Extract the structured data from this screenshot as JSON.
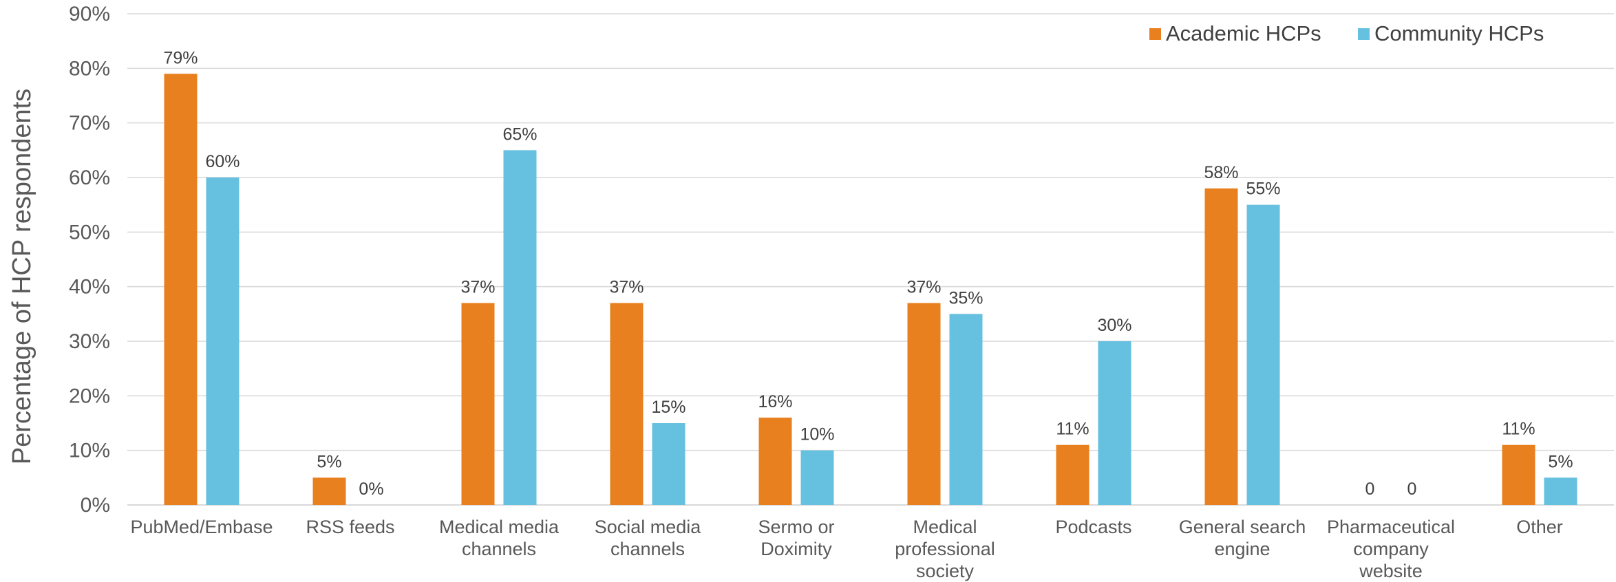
{
  "chart_data": {
    "type": "bar",
    "title": "",
    "xlabel": "",
    "ylabel": "Percentage of HCP respondents",
    "ylim": [
      0,
      90
    ],
    "yticks": [
      "0%",
      "10%",
      "20%",
      "30%",
      "40%",
      "50%",
      "60%",
      "70%",
      "80%",
      "90%"
    ],
    "grid": true,
    "legend_position": "top-right",
    "categories": [
      [
        "PubMed/Embase"
      ],
      [
        "RSS feeds"
      ],
      [
        "Medical media",
        "channels"
      ],
      [
        "Social media",
        "channels"
      ],
      [
        "Sermo or",
        "Doximity"
      ],
      [
        "Medical",
        "professional",
        "society"
      ],
      [
        "Podcasts"
      ],
      [
        "General search",
        "engine"
      ],
      [
        "Pharmaceutical",
        "company",
        "website"
      ],
      [
        "Other"
      ]
    ],
    "series": [
      {
        "name": "Academic HCPs",
        "color": "#e8801f",
        "values": [
          79,
          5,
          37,
          37,
          16,
          37,
          11,
          58,
          0,
          11
        ],
        "labels": [
          "79%",
          "5%",
          "37%",
          "37%",
          "16%",
          "37%",
          "11%",
          "58%",
          "0",
          "11%"
        ]
      },
      {
        "name": "Community HCPs",
        "color": "#66c0df",
        "values": [
          60,
          0,
          65,
          15,
          10,
          35,
          30,
          55,
          0,
          5
        ],
        "labels": [
          "60%",
          "0%",
          "65%",
          "15%",
          "10%",
          "35%",
          "30%",
          "55%",
          "0",
          "5%"
        ]
      }
    ]
  }
}
